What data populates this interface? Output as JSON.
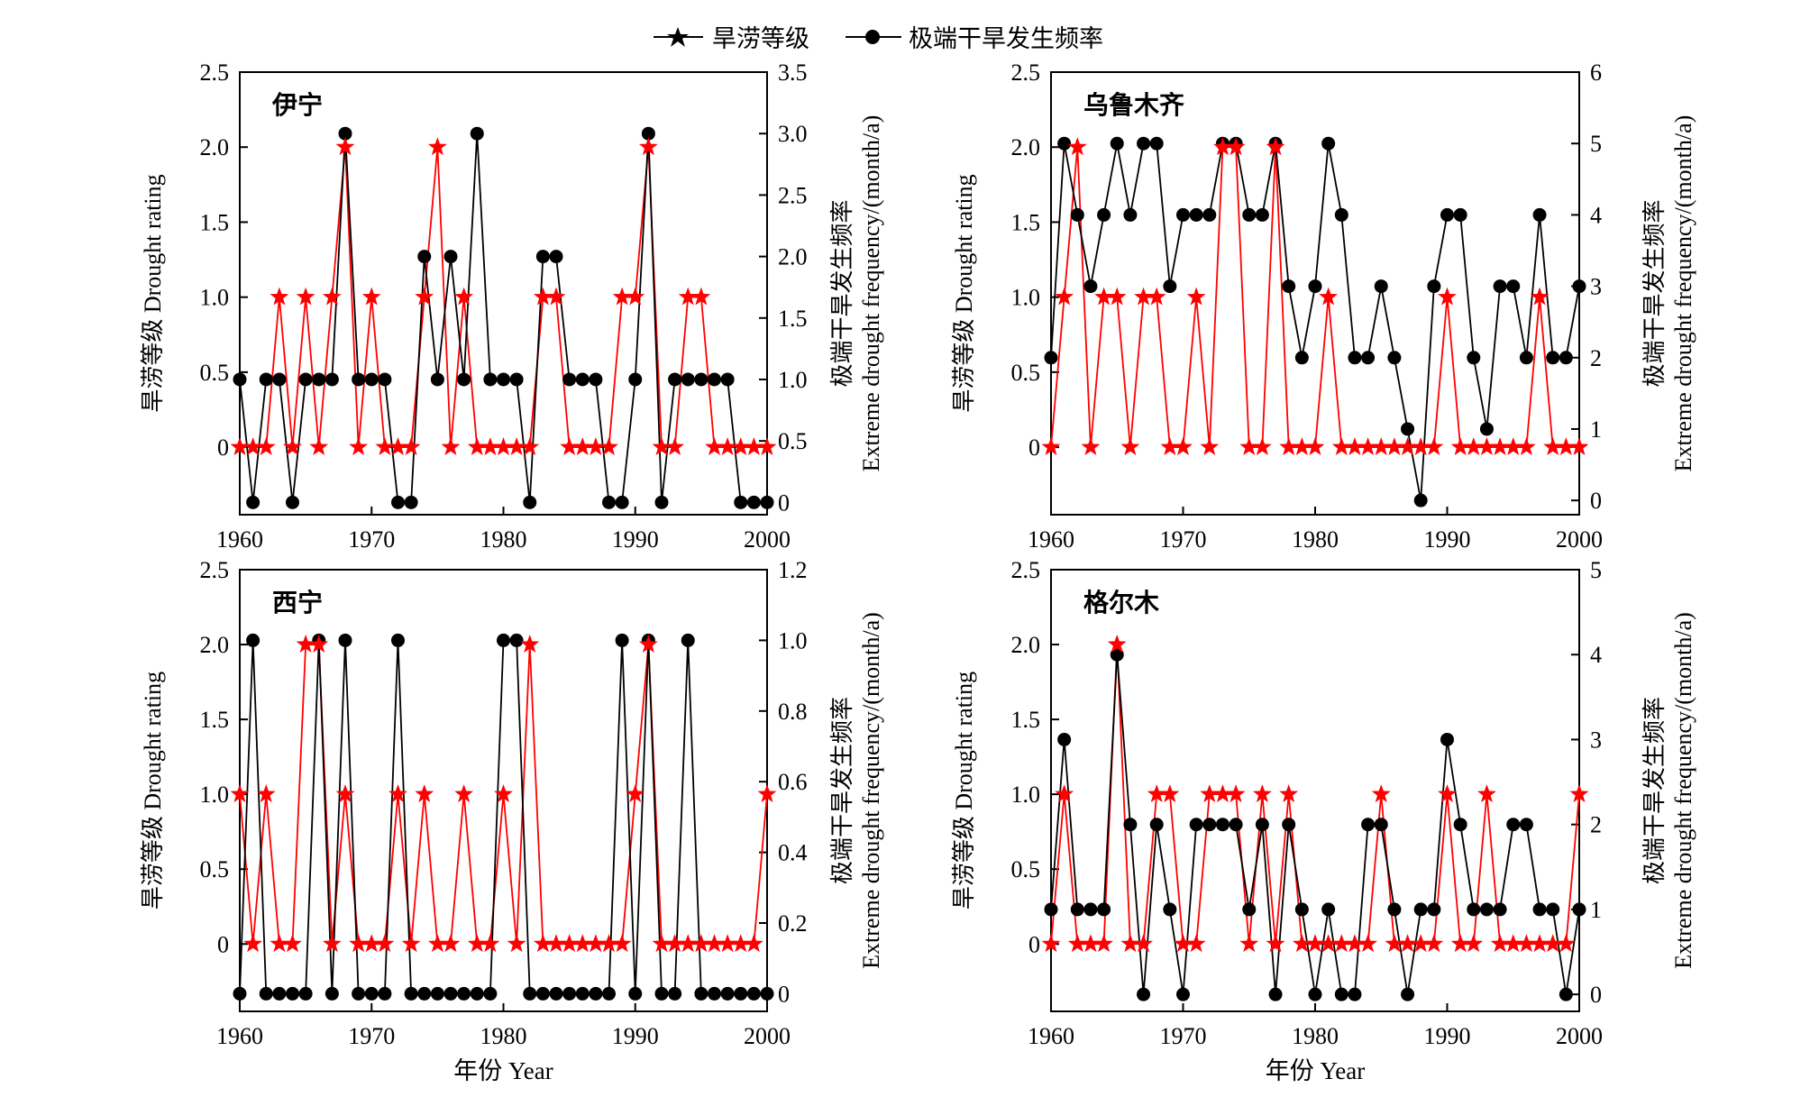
{
  "legend": {
    "drought_label": "旱涝等级",
    "freq_label": "极端干旱发生频率"
  },
  "colors": {
    "drought": "#ff0000",
    "frequency": "#000000",
    "axis": "#000000"
  },
  "axes": {
    "left_label": "旱涝等级 Drought rating",
    "right_label_cn": "极端干旱发生频率",
    "right_label_en": "Extreme drought frequency/(month/a)",
    "x_label": "年份 Year"
  },
  "chart_data": [
    {
      "type": "line",
      "station": "伊宁",
      "x": [
        1960,
        1961,
        1962,
        1963,
        1964,
        1965,
        1966,
        1967,
        1968,
        1969,
        1970,
        1971,
        1972,
        1973,
        1974,
        1975,
        1976,
        1977,
        1978,
        1979,
        1980,
        1981,
        1982,
        1983,
        1984,
        1985,
        1986,
        1987,
        1988,
        1989,
        1990,
        1991,
        1992,
        1993,
        1994,
        1995,
        1996,
        1997,
        1998,
        1999,
        2000
      ],
      "drought_rating": [
        0,
        0,
        0,
        1,
        0,
        1,
        0,
        1,
        2,
        0,
        1,
        0,
        0,
        0,
        1,
        2,
        0,
        1,
        0,
        0,
        0,
        0,
        0,
        1,
        1,
        0,
        0,
        0,
        0,
        1,
        1,
        2,
        0,
        0,
        1,
        1,
        0,
        0,
        0,
        0,
        0
      ],
      "frequency": [
        1,
        0,
        1,
        1,
        0,
        1,
        1,
        1,
        3,
        1,
        1,
        1,
        0,
        0,
        2,
        1,
        2,
        1,
        3,
        1,
        1,
        1,
        0,
        2,
        2,
        1,
        1,
        1,
        0,
        0,
        1,
        3,
        0,
        1,
        1,
        1,
        1,
        1,
        0,
        0,
        0
      ],
      "left_ticks": [
        "0",
        "0.5",
        "1.0",
        "1.5",
        "2.0",
        "2.5"
      ],
      "right_ticks": [
        "0",
        "0.5",
        "1.0",
        "1.5",
        "2.0",
        "2.5",
        "3.0",
        "3.5"
      ],
      "x_ticks": [
        "1960",
        "1970",
        "1980",
        "1990",
        "2000"
      ],
      "ylim_left": [
        -0.45,
        2.5
      ],
      "ylim_right": [
        -0.1,
        3.5
      ]
    },
    {
      "type": "line",
      "station": "乌鲁木齐",
      "x": [
        1960,
        1961,
        1962,
        1963,
        1964,
        1965,
        1966,
        1967,
        1968,
        1969,
        1970,
        1971,
        1972,
        1973,
        1974,
        1975,
        1976,
        1977,
        1978,
        1979,
        1980,
        1981,
        1982,
        1983,
        1984,
        1985,
        1986,
        1987,
        1988,
        1989,
        1990,
        1991,
        1992,
        1993,
        1994,
        1995,
        1996,
        1997,
        1998,
        1999,
        2000
      ],
      "drought_rating": [
        0,
        1,
        2,
        0,
        1,
        1,
        0,
        1,
        1,
        0,
        0,
        1,
        0,
        2,
        2,
        0,
        0,
        2,
        0,
        0,
        0,
        1,
        0,
        0,
        0,
        0,
        0,
        0,
        0,
        0,
        1,
        0,
        0,
        0,
        0,
        0,
        0,
        1,
        0,
        0,
        0
      ],
      "frequency": [
        2,
        5,
        4,
        3,
        4,
        5,
        4,
        5,
        5,
        3,
        4,
        4,
        4,
        5,
        5,
        4,
        4,
        5,
        3,
        2,
        3,
        5,
        4,
        2,
        2,
        3,
        2,
        1,
        0,
        3,
        4,
        4,
        2,
        1,
        3,
        3,
        2,
        4,
        2,
        2,
        3
      ],
      "left_ticks": [
        "0",
        "0.5",
        "1.0",
        "1.5",
        "2.0",
        "2.5"
      ],
      "right_ticks": [
        "0",
        "1",
        "2",
        "3",
        "4",
        "5",
        "6"
      ],
      "x_ticks": [
        "1960",
        "1970",
        "1980",
        "1990",
        "2000"
      ],
      "ylim_left": [
        -0.45,
        2.5
      ],
      "ylim_right": [
        -0.2,
        6
      ]
    },
    {
      "type": "line",
      "station": "西宁",
      "x": [
        1960,
        1961,
        1962,
        1963,
        1964,
        1965,
        1966,
        1967,
        1968,
        1969,
        1970,
        1971,
        1972,
        1973,
        1974,
        1975,
        1976,
        1977,
        1978,
        1979,
        1980,
        1981,
        1982,
        1983,
        1984,
        1985,
        1986,
        1987,
        1988,
        1989,
        1990,
        1991,
        1992,
        1993,
        1994,
        1995,
        1996,
        1997,
        1998,
        1999,
        2000
      ],
      "drought_rating": [
        1,
        0,
        1,
        0,
        0,
        2,
        2,
        0,
        1,
        0,
        0,
        0,
        1,
        0,
        1,
        0,
        0,
        1,
        0,
        0,
        1,
        0,
        2,
        0,
        0,
        0,
        0,
        0,
        0,
        0,
        1,
        2,
        0,
        0,
        0,
        0,
        0,
        0,
        0,
        0,
        1
      ],
      "frequency": [
        0,
        1,
        0,
        0,
        0,
        0,
        1,
        0,
        1,
        0,
        0,
        0,
        1,
        0,
        0,
        0,
        0,
        0,
        0,
        0,
        1,
        1,
        0,
        0,
        0,
        0,
        0,
        0,
        0,
        1,
        0,
        1,
        0,
        0,
        1,
        0,
        0,
        0,
        0,
        0,
        0
      ],
      "left_ticks": [
        "0",
        "0.5",
        "1.0",
        "1.5",
        "2.0",
        "2.5"
      ],
      "right_ticks": [
        "0",
        "0.2",
        "0.4",
        "0.6",
        "0.8",
        "1.0",
        "1.2"
      ],
      "x_ticks": [
        "1960",
        "1970",
        "1980",
        "1990",
        "2000"
      ],
      "ylim_left": [
        -0.45,
        2.5
      ],
      "ylim_right": [
        -0.05,
        1.2
      ]
    },
    {
      "type": "line",
      "station": "格尔木",
      "x": [
        1960,
        1961,
        1962,
        1963,
        1964,
        1965,
        1966,
        1967,
        1968,
        1969,
        1970,
        1971,
        1972,
        1973,
        1974,
        1975,
        1976,
        1977,
        1978,
        1979,
        1980,
        1981,
        1982,
        1983,
        1984,
        1985,
        1986,
        1987,
        1988,
        1989,
        1990,
        1991,
        1992,
        1993,
        1994,
        1995,
        1996,
        1997,
        1998,
        1999,
        2000
      ],
      "drought_rating": [
        0,
        1,
        0,
        0,
        0,
        2,
        0,
        0,
        1,
        1,
        0,
        0,
        1,
        1,
        1,
        0,
        1,
        0,
        1,
        0,
        0,
        0,
        0,
        0,
        0,
        1,
        0,
        0,
        0,
        0,
        1,
        0,
        0,
        1,
        0,
        0,
        0,
        0,
        0,
        0,
        1
      ],
      "frequency": [
        1,
        3,
        1,
        1,
        1,
        4,
        2,
        0,
        2,
        1,
        0,
        2,
        2,
        2,
        2,
        1,
        2,
        0,
        2,
        1,
        0,
        1,
        0,
        0,
        2,
        2,
        1,
        0,
        1,
        1,
        3,
        2,
        1,
        1,
        1,
        2,
        2,
        1,
        1,
        0,
        1
      ],
      "left_ticks": [
        "0",
        "0.5",
        "1.0",
        "1.5",
        "2.0",
        "2.5"
      ],
      "right_ticks": [
        "0",
        "1",
        "2",
        "3",
        "4",
        "5"
      ],
      "x_ticks": [
        "1960",
        "1970",
        "1980",
        "1990",
        "2000"
      ],
      "ylim_left": [
        -0.45,
        2.5
      ],
      "ylim_right": [
        -0.2,
        5
      ]
    }
  ]
}
